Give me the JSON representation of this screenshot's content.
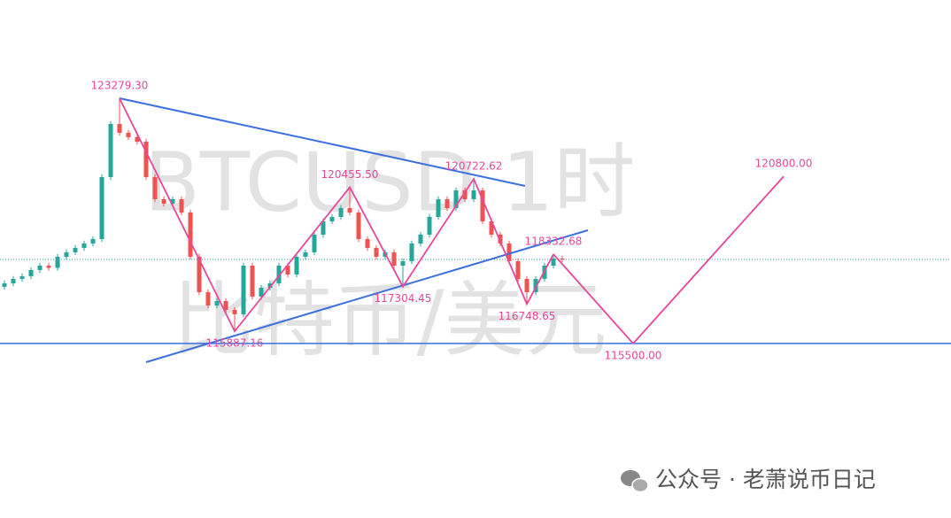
{
  "chart_data": {
    "type": "candlestick",
    "xlim": [
      -0.5,
      106.9
    ],
    "ylim": [
      109964,
      126397
    ],
    "up_color": "#26a69a",
    "down_color": "#ef5350",
    "open": [
      117300,
      117409,
      117549,
      117633,
      117830,
      117970,
      117900,
      118251,
      118392,
      118532,
      118672,
      118813,
      120779,
      122465,
      122184,
      122044,
      121903,
      120779,
      120077,
      119937,
      120077,
      119656,
      118251,
      117128,
      116706,
      116847,
      116566,
      116425,
      117970,
      116987,
      117268,
      117409,
      117970,
      117689,
      118251,
      118392,
      118953,
      119375,
      119515,
      119796,
      119656,
      118813,
      118532,
      118251,
      118392,
      117970,
      118111,
      118672,
      118953,
      119515,
      120077,
      119796,
      120358,
      120077,
      120358,
      119375,
      118953,
      118672,
      118111,
      117549,
      117128,
      117549,
      117970,
      118195
    ],
    "high": [
      117499,
      117639,
      117723,
      117920,
      118060,
      118060,
      118341,
      118482,
      118622,
      118762,
      118903,
      120869,
      122555,
      123279.3,
      122274,
      122134,
      121993,
      120869,
      120167,
      120167,
      120167,
      119746,
      118341,
      117218,
      116937,
      116937,
      116656,
      118060,
      118060,
      117358,
      117499,
      118060,
      118060,
      118341,
      118482,
      119043,
      119465,
      119605,
      119886,
      120455.5,
      119746,
      118903,
      118622,
      118482,
      118482,
      118201,
      118762,
      119043,
      119605,
      120167,
      120167,
      120448,
      120448,
      120722.62,
      120448,
      119465,
      119043,
      118762,
      118201,
      117639,
      117639,
      118060,
      118332.68,
      118285
    ],
    "low": [
      117210,
      117319,
      117459,
      117543,
      117740,
      117810,
      117810,
      118161,
      118302,
      118442,
      118582,
      118723,
      120689,
      122094,
      121954,
      121813,
      120689,
      119987,
      119847,
      119847,
      119566,
      118161,
      117038,
      116616,
      116616,
      116476,
      115887.16,
      116335,
      116897,
      116897,
      117178,
      117319,
      117599,
      117599,
      118161,
      118302,
      118863,
      119285,
      119425,
      119566,
      118723,
      118442,
      118161,
      118161,
      117880,
      117304.45,
      118021,
      118582,
      118863,
      119425,
      119706,
      119706,
      119987,
      119987,
      119285,
      118863,
      118582,
      118021,
      117459,
      116748.65,
      117038,
      117459,
      117880,
      118077
    ],
    "close": [
      117409,
      117549,
      117633,
      117830,
      117970,
      117900,
      118251,
      118392,
      118532,
      118672,
      118813,
      120779,
      122465,
      122184,
      122044,
      121903,
      120779,
      120077,
      119937,
      120077,
      119656,
      118251,
      117128,
      116706,
      116847,
      116566,
      116425,
      117970,
      116987,
      117268,
      117409,
      117970,
      117689,
      118251,
      118392,
      118953,
      119375,
      119515,
      119796,
      119656,
      118813,
      118532,
      118251,
      118392,
      117970,
      118111,
      118672,
      118953,
      119515,
      120077,
      119796,
      120358,
      120077,
      120358,
      119375,
      118953,
      118672,
      118111,
      117549,
      117128,
      117549,
      117970,
      118195,
      118167
    ],
    "zigzag": {
      "color": "#e8479a",
      "x": [
        13,
        26,
        39,
        45,
        53,
        59,
        62
      ],
      "values": [
        123279.3,
        115887.16,
        120455.5,
        117304.45,
        120722.62,
        116748.65,
        118332.68
      ],
      "value_labels": [
        "123279.30",
        "115887.16",
        "120455.50",
        "117304.45",
        "120722.62",
        "116748.65",
        "118332.68"
      ]
    },
    "projection": {
      "color": "#e8479a",
      "x": [
        71,
        88
      ],
      "values": [
        115500,
        120800
      ],
      "value_labels": [
        "115500.00",
        "120800.00"
      ]
    },
    "trendlines": {
      "color": "#3a6fe0",
      "lines": [
        {
          "x": [
            13,
            58.8
          ],
          "values": [
            123279.3,
            120498
          ]
        },
        {
          "x": [
            16,
            65.9
          ],
          "values": [
            114908,
            119094
          ]
        }
      ]
    },
    "hline": {
      "value": 115500,
      "color": "#3a6fe0"
    },
    "last_price": {
      "value": 118167,
      "color": "#26a69a"
    },
    "watermark": [
      "BTCUSD 1时",
      "比特币/美元"
    ]
  },
  "footer": "公众号 · 老萧说币日记"
}
